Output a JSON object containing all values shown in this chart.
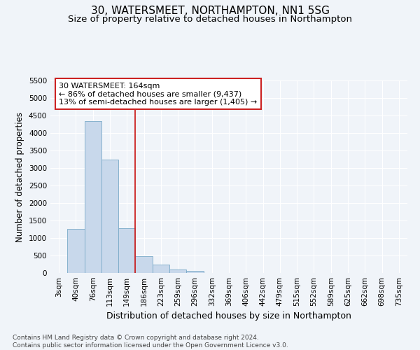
{
  "title": "30, WATERSMEET, NORTHAMPTON, NN1 5SG",
  "subtitle": "Size of property relative to detached houses in Northampton",
  "xlabel": "Distribution of detached houses by size in Northampton",
  "ylabel": "Number of detached properties",
  "categories": [
    "3sqm",
    "40sqm",
    "76sqm",
    "113sqm",
    "149sqm",
    "186sqm",
    "223sqm",
    "259sqm",
    "296sqm",
    "332sqm",
    "369sqm",
    "406sqm",
    "442sqm",
    "479sqm",
    "515sqm",
    "552sqm",
    "589sqm",
    "625sqm",
    "662sqm",
    "698sqm",
    "735sqm"
  ],
  "values": [
    0,
    1270,
    4340,
    3250,
    1290,
    480,
    235,
    100,
    65,
    0,
    0,
    0,
    0,
    0,
    0,
    0,
    0,
    0,
    0,
    0,
    0
  ],
  "bar_color": "#c8d8eb",
  "bar_edge_color": "#7aaac8",
  "vline_color": "#cc2222",
  "annotation_text": "30 WATERSMEET: 164sqm\n← 86% of detached houses are smaller (9,437)\n13% of semi-detached houses are larger (1,405) →",
  "annotation_box_color": "#ffffff",
  "annotation_box_edge": "#cc2222",
  "ylim": [
    0,
    5500
  ],
  "yticks": [
    0,
    500,
    1000,
    1500,
    2000,
    2500,
    3000,
    3500,
    4000,
    4500,
    5000,
    5500
  ],
  "footnote": "Contains HM Land Registry data © Crown copyright and database right 2024.\nContains public sector information licensed under the Open Government Licence v3.0.",
  "bg_color": "#f0f4f9",
  "grid_color": "#ffffff",
  "title_fontsize": 11,
  "subtitle_fontsize": 9.5,
  "tick_fontsize": 7.5,
  "ylabel_fontsize": 8.5,
  "xlabel_fontsize": 9,
  "footnote_fontsize": 6.5
}
